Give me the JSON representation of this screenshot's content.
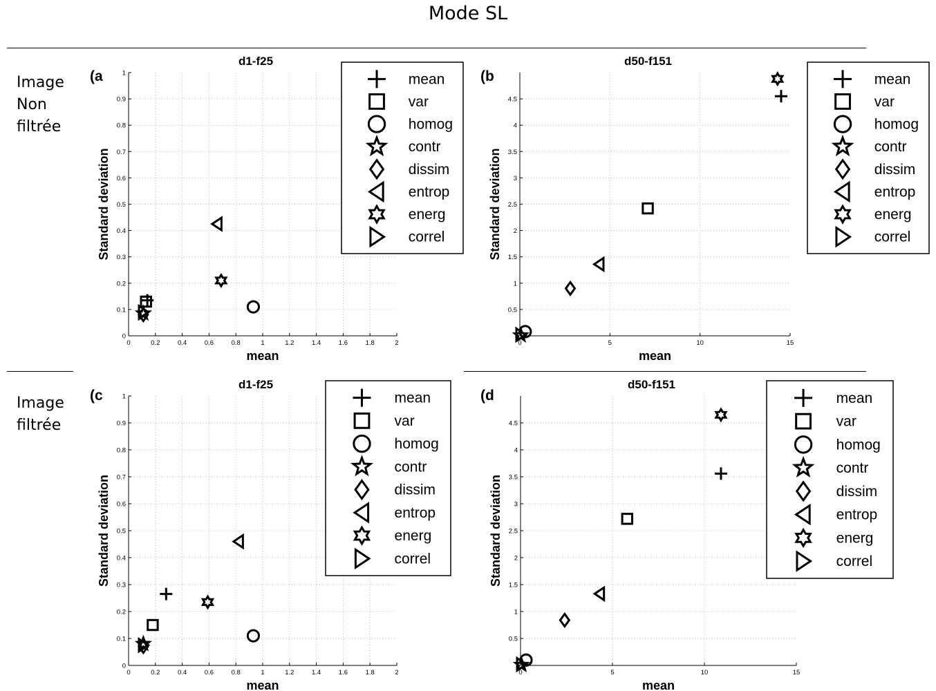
{
  "page": {
    "title": "Mode SL",
    "rows": [
      {
        "label_lines": [
          "Image",
          "Non",
          "filtrée"
        ]
      },
      {
        "label_lines": [
          "Image",
          "filtrée"
        ]
      }
    ]
  },
  "legend_entries": [
    {
      "symbol": "plus",
      "label": "mean"
    },
    {
      "symbol": "square",
      "label": "var"
    },
    {
      "symbol": "circle",
      "label": "homog"
    },
    {
      "symbol": "pentagram",
      "label": "contr"
    },
    {
      "symbol": "diamond",
      "label": "dissim"
    },
    {
      "symbol": "triangle-left",
      "label": "entrop"
    },
    {
      "symbol": "hexagram",
      "label": "energ"
    },
    {
      "symbol": "triangle-right",
      "label": "correl"
    }
  ],
  "chart_data": [
    {
      "type": "scatter",
      "panel_label": "(a",
      "title": "d1-f25",
      "xlabel": "mean",
      "ylabel": "Standard deviation",
      "xlim": [
        0,
        2
      ],
      "ylim": [
        0,
        1
      ],
      "xticks": [
        0,
        0.2,
        0.4,
        0.6,
        0.8,
        1,
        1.2,
        1.4,
        1.6,
        1.8,
        2
      ],
      "yticks": [
        0,
        0.1,
        0.2,
        0.3,
        0.4,
        0.5,
        0.6,
        0.7,
        0.8,
        0.9,
        1
      ],
      "grid": true,
      "legend_position": "top-right",
      "series": [
        {
          "name": "mean",
          "symbol": "plus",
          "x": 0.14,
          "y": 0.135
        },
        {
          "name": "var",
          "symbol": "square",
          "x": 0.13,
          "y": 0.13
        },
        {
          "name": "homog",
          "symbol": "circle",
          "x": 0.93,
          "y": 0.11
        },
        {
          "name": "contr",
          "symbol": "pentagram",
          "x": 0.11,
          "y": 0.085
        },
        {
          "name": "dissim",
          "symbol": "diamond",
          "x": 0.11,
          "y": 0.08
        },
        {
          "name": "entrop",
          "symbol": "triangle-left",
          "x": 0.66,
          "y": 0.425
        },
        {
          "name": "energ",
          "symbol": "hexagram",
          "x": 0.69,
          "y": 0.21
        },
        {
          "name": "correl",
          "symbol": "triangle-right",
          "x": 0.11,
          "y": 0.09
        }
      ]
    },
    {
      "type": "scatter",
      "panel_label": "(b",
      "title": "d50-f151",
      "xlabel": "mean",
      "ylabel": "Standard deviation",
      "xlim": [
        0,
        15
      ],
      "ylim": [
        0,
        5
      ],
      "xticks": [
        0,
        5,
        10,
        15
      ],
      "yticks": [
        0.5,
        1,
        1.5,
        2,
        2.5,
        3,
        3.5,
        4,
        4.5
      ],
      "grid": true,
      "legend_position": "top-right",
      "series": [
        {
          "name": "mean",
          "symbol": "plus",
          "x": 14.5,
          "y": 4.55
        },
        {
          "name": "var",
          "symbol": "square",
          "x": 7.1,
          "y": 2.42
        },
        {
          "name": "homog",
          "symbol": "circle",
          "x": 0.3,
          "y": 0.08
        },
        {
          "name": "contr",
          "symbol": "pentagram",
          "x": 0.05,
          "y": 0.01
        },
        {
          "name": "dissim",
          "symbol": "diamond",
          "x": 2.8,
          "y": 0.9
        },
        {
          "name": "entrop",
          "symbol": "triangle-left",
          "x": 4.4,
          "y": 1.36
        },
        {
          "name": "energ",
          "symbol": "hexagram",
          "x": 14.3,
          "y": 4.88
        },
        {
          "name": "correl",
          "symbol": "triangle-right",
          "x": 0.05,
          "y": 0.02
        }
      ]
    },
    {
      "type": "scatter",
      "panel_label": "(c",
      "title": "d1-f25",
      "xlabel": "mean",
      "ylabel": "Standard deviation",
      "xlim": [
        0,
        2
      ],
      "ylim": [
        0,
        1
      ],
      "xticks": [
        0,
        0.2,
        0.4,
        0.6,
        0.8,
        1,
        1.2,
        1.4,
        1.6,
        1.8,
        2
      ],
      "yticks": [
        0,
        0.1,
        0.2,
        0.3,
        0.4,
        0.5,
        0.6,
        0.7,
        0.8,
        0.9,
        1
      ],
      "grid": true,
      "legend_position": "top-right",
      "series": [
        {
          "name": "mean",
          "symbol": "plus",
          "x": 0.28,
          "y": 0.265
        },
        {
          "name": "var",
          "symbol": "square",
          "x": 0.18,
          "y": 0.15
        },
        {
          "name": "homog",
          "symbol": "circle",
          "x": 0.93,
          "y": 0.11
        },
        {
          "name": "contr",
          "symbol": "pentagram",
          "x": 0.11,
          "y": 0.08
        },
        {
          "name": "dissim",
          "symbol": "diamond",
          "x": 0.11,
          "y": 0.07
        },
        {
          "name": "entrop",
          "symbol": "triangle-left",
          "x": 0.82,
          "y": 0.46
        },
        {
          "name": "energ",
          "symbol": "hexagram",
          "x": 0.59,
          "y": 0.235
        },
        {
          "name": "correl",
          "symbol": "triangle-right",
          "x": 0.11,
          "y": 0.075
        }
      ]
    },
    {
      "type": "scatter",
      "panel_label": "(d",
      "title": "d50-f151",
      "xlabel": "mean",
      "ylabel": "Standard deviation",
      "xlim": [
        0,
        15
      ],
      "ylim": [
        0,
        5
      ],
      "xticks": [
        0,
        5,
        10,
        15
      ],
      "yticks": [
        0.5,
        1,
        1.5,
        2,
        2.5,
        3,
        3.5,
        4,
        4.5
      ],
      "grid": true,
      "legend_position": "top-right",
      "series": [
        {
          "name": "mean",
          "symbol": "plus",
          "x": 10.9,
          "y": 3.56
        },
        {
          "name": "var",
          "symbol": "square",
          "x": 5.8,
          "y": 2.72
        },
        {
          "name": "homog",
          "symbol": "circle",
          "x": 0.3,
          "y": 0.1
        },
        {
          "name": "contr",
          "symbol": "pentagram",
          "x": 0.05,
          "y": 0.01
        },
        {
          "name": "dissim",
          "symbol": "diamond",
          "x": 2.4,
          "y": 0.84
        },
        {
          "name": "entrop",
          "symbol": "triangle-left",
          "x": 4.3,
          "y": 1.33
        },
        {
          "name": "energ",
          "symbol": "hexagram",
          "x": 10.9,
          "y": 4.65
        },
        {
          "name": "correl",
          "symbol": "triangle-right",
          "x": 0.05,
          "y": 0.02
        }
      ]
    }
  ]
}
